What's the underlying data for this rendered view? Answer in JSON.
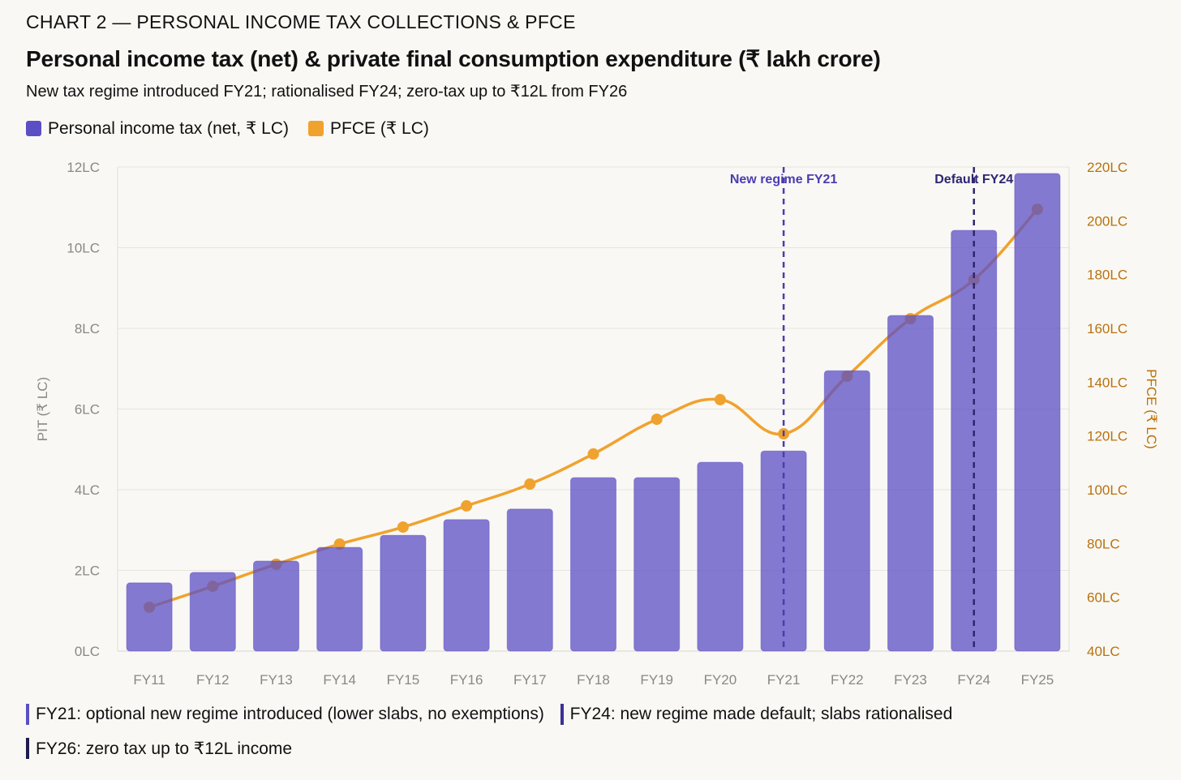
{
  "header": {
    "kicker": "CHART 2 — PERSONAL INCOME TAX COLLECTIONS & PFCE",
    "title": "Personal income tax (net) & private final consumption expenditure (₹ lakh crore)",
    "subtitle": "New tax regime introduced FY21; rationalised FY24; zero-tax up to ₹12L from FY26"
  },
  "legend": [
    {
      "label": "Personal income tax (net, ₹ LC)",
      "color": "#5b4fc4"
    },
    {
      "label": "PFCE (₹ LC)",
      "color": "#f0a22e"
    }
  ],
  "chart_data": {
    "type": "bar+line",
    "categories": [
      "FY11",
      "FY12",
      "FY13",
      "FY14",
      "FY15",
      "FY16",
      "FY17",
      "FY18",
      "FY19",
      "FY20",
      "FY21",
      "FY22",
      "FY23",
      "FY24",
      "FY25"
    ],
    "series": [
      {
        "name": "Personal income tax (net, ₹ LC)",
        "type": "bar",
        "axis": "left",
        "color": "#5b4fc4",
        "values": [
          1.69,
          1.95,
          2.23,
          2.57,
          2.87,
          3.26,
          3.52,
          4.3,
          4.3,
          4.68,
          4.96,
          6.95,
          8.32,
          10.43,
          11.84
        ]
      },
      {
        "name": "PFCE (₹ LC)",
        "type": "line",
        "axis": "right",
        "color": "#f0a22e",
        "values": [
          56.3,
          64.1,
          72.3,
          79.8,
          86.1,
          94.0,
          102.1,
          113.3,
          126.2,
          133.5,
          120.8,
          142.2,
          163.6,
          178.1,
          204.3
        ]
      }
    ],
    "ylabel": "PIT (₹ LC)",
    "y2label": "PFCE (₹ LC)",
    "ylim": [
      0,
      12
    ],
    "y2lim": [
      40,
      220
    ],
    "yticks": [
      "0LC",
      "2LC",
      "4LC",
      "6LC",
      "8LC",
      "10LC",
      "12LC"
    ],
    "y2ticks": [
      "40LC",
      "60LC",
      "80LC",
      "100LC",
      "120LC",
      "140LC",
      "160LC",
      "180LC",
      "200LC",
      "220LC"
    ],
    "grid": true,
    "annotations": [
      {
        "label": "New regime FY21",
        "category": "FY21",
        "color": "#4a3db0"
      },
      {
        "label": "Default FY24",
        "category": "FY24",
        "color": "#2e2670"
      }
    ]
  },
  "notes": [
    {
      "text": "FY21: optional new regime introduced (lower slabs, no exemptions)",
      "color": "#5b4fc4"
    },
    {
      "text": "FY24: new regime made default; slabs rationalised",
      "color": "#3b3294"
    },
    {
      "text": "FY26: zero tax up to ₹12L income",
      "color": "#1f1a4f"
    }
  ]
}
